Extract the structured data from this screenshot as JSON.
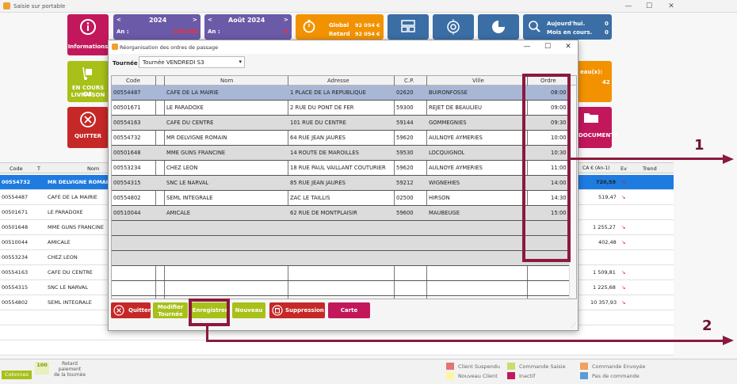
{
  "window": {
    "title": "Saisie sur portable",
    "minimize": "—",
    "maximize": "☐",
    "close": "✕"
  },
  "tiles": {
    "informations": {
      "label": "Informations",
      "color": "#c2185b"
    },
    "year": {
      "year": "2024",
      "prev": "<",
      "next": ">",
      "an_label": "An :",
      "an_value": "146 092",
      "color": "#6b5aa8"
    },
    "month": {
      "month": "Août 2024",
      "prev": "<",
      "next": ">",
      "an_label": "An :",
      "an_value": "0",
      "color": "#6b5aa8"
    },
    "global": {
      "global_label": "Global",
      "global_value": "92 054 €",
      "retard_label": "Retard",
      "retard_value": "92 054 €",
      "color": "#f39200"
    },
    "kpi": {
      "line1_label": "Aujourd'hui.",
      "line1_value": "0",
      "line2_label": "Mois en cours.",
      "line2_value": "0",
      "color": "#3a6ea5"
    },
    "livraison": {
      "label1": "EN COURS DE",
      "label2": "LIVRAISON",
      "color": "#a8c018"
    },
    "quitter": {
      "label": "QUITTER",
      "color": "#c62828"
    },
    "right_orange": {
      "label": "eau(x):",
      "value": "42",
      "color": "#f39200"
    },
    "documents": {
      "label": "DOCUMENTS",
      "color": "#c2185b"
    }
  },
  "background_table": {
    "headers": {
      "code": "Code",
      "t": "T",
      "nom": "Nom",
      "ca": "CA € (An-1)",
      "ev": "Ev",
      "trend": "Trend"
    },
    "rows": [
      {
        "code": "00554732",
        "nom": "MR DELVIGNE ROMAI",
        "ca": "720,59",
        "selected": true
      },
      {
        "code": "00554487",
        "nom": "CAFE DE LA MAIRIE",
        "ca": "519,47"
      },
      {
        "code": "00501671",
        "nom": "LE PARADOXE",
        "ca": ""
      },
      {
        "code": "00501648",
        "nom": "MME GUNS FRANCINE",
        "ca": "1 255,27"
      },
      {
        "code": "00510044",
        "nom": "AMICALE",
        "ca": "402,48"
      },
      {
        "code": "00553234",
        "nom": "CHEZ LEON",
        "ca": ""
      },
      {
        "code": "00554163",
        "nom": "CAFE DU CENTRE",
        "ca": "1 509,81"
      },
      {
        "code": "00554315",
        "nom": "SNC LE NARVAL",
        "ca": "1 225,68"
      },
      {
        "code": "00554802",
        "nom": "SEML INTEGRALE",
        "ca": "10 357,93"
      }
    ]
  },
  "footer": {
    "colonnes": "Colonnes",
    "retard_line1": "Retard",
    "retard_line2": "paiement",
    "retard_line3": "de la tournée",
    "legend": [
      {
        "label": "Client Suspendu",
        "color": "#e57373"
      },
      {
        "label": "Commande Saisie",
        "color": "#c5e06a"
      },
      {
        "label": "Commande Envoyée",
        "color": "#f0a060"
      },
      {
        "label": "Nouveau Client",
        "color": "#fff59d"
      },
      {
        "label": "Inactif",
        "color": "#c2185b"
      },
      {
        "label": "Pas de commande",
        "color": "#5c9bd6"
      }
    ]
  },
  "dialog": {
    "title": "Réorganisation des ordres de passage",
    "minimize": "—",
    "maximize": "☐",
    "close": "✕",
    "tournee_label": "Tournée",
    "tournee_value": "Tournée VENDREDI S3",
    "headers": {
      "code": "Code",
      "nom": "Nom",
      "adresse": "Adresse",
      "cp": "C.P.",
      "ville": "Ville",
      "ordre": "Ordre"
    },
    "rows": [
      {
        "code": "00554487",
        "nom": "CAFE DE LA MAIRIE",
        "adresse": "1 PLACE DE LA REPUBLIQUE",
        "cp": "02620",
        "ville": "BUIRONFOSSE",
        "ordre": "08:00"
      },
      {
        "code": "00501671",
        "nom": "LE PARADOXE",
        "adresse": "2 RUE DU PONT DE FER",
        "cp": "59300",
        "ville": "REJET DE BEAULIEU",
        "ordre": "09:00"
      },
      {
        "code": "00554163",
        "nom": "CAFE DU CENTRE",
        "adresse": "101 RUE DU CENTRE",
        "cp": "59144",
        "ville": "GOMMEGNIES",
        "ordre": "09:30"
      },
      {
        "code": "00554732",
        "nom": "MR DELVIGNE ROMAIN",
        "adresse": "64 RUE JEAN JAURES",
        "cp": "59620",
        "ville": "AULNOYE AYMERIES",
        "ordre": "10:00"
      },
      {
        "code": "00501648",
        "nom": "MME GUNS FRANCINE",
        "adresse": "14 ROUTE DE MAROILLES",
        "cp": "59530",
        "ville": "LOCQUIGNOL",
        "ordre": "10:30"
      },
      {
        "code": "00553234",
        "nom": "CHEZ LEON",
        "adresse": "18 RUE PAUL VAILLANT COUTURIER",
        "cp": "59620",
        "ville": "AULNOYE AYMERIES",
        "ordre": "11:00"
      },
      {
        "code": "00554315",
        "nom": "SNC LE NARVAL",
        "adresse": "85 RUE JEAN JAURES",
        "cp": "59212",
        "ville": "WIGNEHIES",
        "ordre": "14:00"
      },
      {
        "code": "00554802",
        "nom": "SEML INTEGRALE",
        "adresse": "ZAC LE TAILLIS",
        "cp": "02500",
        "ville": "HIRSON",
        "ordre": "14:30"
      },
      {
        "code": "00510044",
        "nom": "AMICALE",
        "adresse": "62 RUE DE MONTPLAISIR",
        "cp": "59600",
        "ville": "MAUBEUGE",
        "ordre": "15:00"
      }
    ],
    "buttons": {
      "quitter": "Quitter",
      "modifier_line1": "Modifier",
      "modifier_line2": "Tournée",
      "enregistrer": "Enregistrer",
      "nouveau": "Nouveau",
      "suppression": "Suppression",
      "carte": "Carte"
    }
  },
  "callouts": {
    "one": "1",
    "two": "2"
  },
  "accent_colors": {
    "callout": "#8b1a3c",
    "selected_row": "#a9b7d6",
    "alt_row": "#dcdcdc"
  }
}
